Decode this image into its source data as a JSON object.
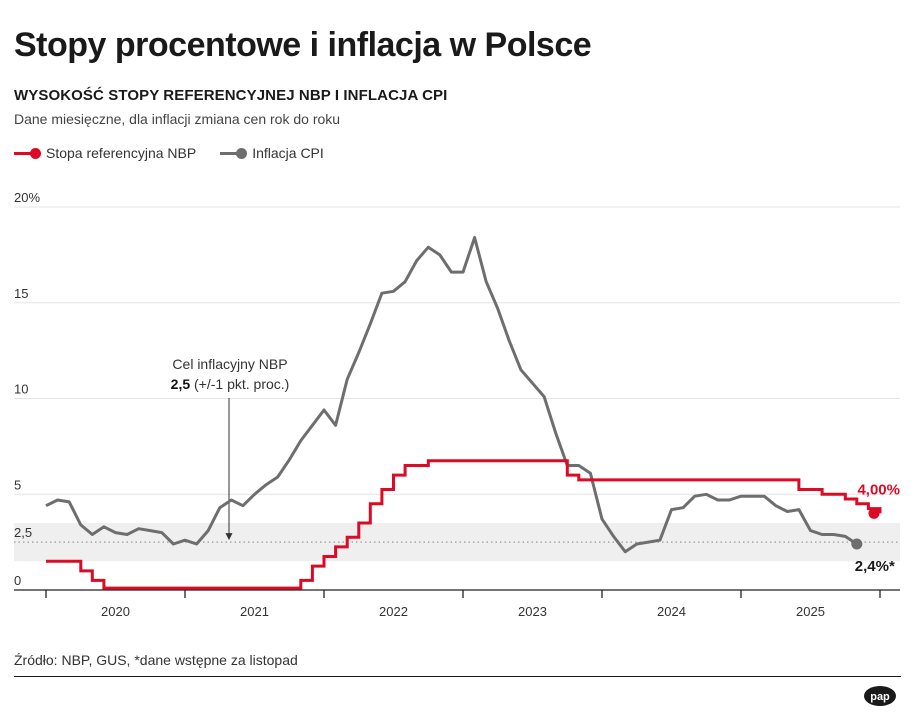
{
  "title": "Stopy procentowe i inflacja w Polsce",
  "subtitle": "WYSOKOŚĆ STOPY REFERENCYJNEJ NBP I INFLACJA CPI",
  "note": "Dane miesięczne, dla inflacji zmiana cen rok do roku",
  "legend": {
    "rate": "Stopa referencyjna NBP",
    "cpi": "Inflacja CPI"
  },
  "annotation": {
    "line1": "Cel inflacyjny NBP",
    "value": "2,5",
    "rest": " (+/-1 pkt. proc.)"
  },
  "end_labels": {
    "rate": "4,00%",
    "cpi": "2,4%*"
  },
  "source": "Źródło: NBP, GUS, *dane wstępne za listopad",
  "logo_text": "pap",
  "colors": {
    "rate": "#dc0a24",
    "cpi": "#6e6e6e",
    "band": "#efefef",
    "grid": "#e3e3e3",
    "axis": "#222222"
  },
  "chart_data": {
    "type": "line",
    "ylim": [
      0,
      20
    ],
    "y_ticks": [
      {
        "value": 0,
        "label": "0"
      },
      {
        "value": 2.5,
        "label": "2,5"
      },
      {
        "value": 5,
        "label": "5"
      },
      {
        "value": 10,
        "label": "10"
      },
      {
        "value": 15,
        "label": "15"
      },
      {
        "value": 20,
        "label": "20%"
      }
    ],
    "x_range": [
      "2019-12",
      "2025-12"
    ],
    "year_labels": [
      "2020",
      "2021",
      "2022",
      "2023",
      "2024",
      "2025"
    ],
    "target_band": {
      "center": 2.5,
      "low": 1.5,
      "high": 3.5
    },
    "series": [
      {
        "name": "Stopa referencyjna NBP",
        "step": true,
        "points": [
          [
            "2019-12",
            1.5
          ],
          [
            "2020-01",
            1.5
          ],
          [
            "2020-02",
            1.5
          ],
          [
            "2020-03",
            1.0
          ],
          [
            "2020-04",
            0.5
          ],
          [
            "2020-05",
            0.1
          ],
          [
            "2020-06",
            0.1
          ],
          [
            "2020-07",
            0.1
          ],
          [
            "2020-08",
            0.1
          ],
          [
            "2020-09",
            0.1
          ],
          [
            "2020-10",
            0.1
          ],
          [
            "2020-11",
            0.1
          ],
          [
            "2020-12",
            0.1
          ],
          [
            "2021-01",
            0.1
          ],
          [
            "2021-02",
            0.1
          ],
          [
            "2021-03",
            0.1
          ],
          [
            "2021-04",
            0.1
          ],
          [
            "2021-05",
            0.1
          ],
          [
            "2021-06",
            0.1
          ],
          [
            "2021-07",
            0.1
          ],
          [
            "2021-08",
            0.1
          ],
          [
            "2021-09",
            0.1
          ],
          [
            "2021-10",
            0.5
          ],
          [
            "2021-11",
            1.25
          ],
          [
            "2021-12",
            1.75
          ],
          [
            "2022-01",
            2.25
          ],
          [
            "2022-02",
            2.75
          ],
          [
            "2022-03",
            3.5
          ],
          [
            "2022-04",
            4.5
          ],
          [
            "2022-05",
            5.25
          ],
          [
            "2022-06",
            6.0
          ],
          [
            "2022-07",
            6.5
          ],
          [
            "2022-08",
            6.5
          ],
          [
            "2022-09",
            6.75
          ],
          [
            "2022-10",
            6.75
          ],
          [
            "2022-11",
            6.75
          ],
          [
            "2022-12",
            6.75
          ],
          [
            "2023-01",
            6.75
          ],
          [
            "2023-02",
            6.75
          ],
          [
            "2023-03",
            6.75
          ],
          [
            "2023-04",
            6.75
          ],
          [
            "2023-05",
            6.75
          ],
          [
            "2023-06",
            6.75
          ],
          [
            "2023-07",
            6.75
          ],
          [
            "2023-08",
            6.75
          ],
          [
            "2023-09",
            6.0
          ],
          [
            "2023-10",
            5.75
          ],
          [
            "2023-11",
            5.75
          ],
          [
            "2023-12",
            5.75
          ],
          [
            "2024-01",
            5.75
          ],
          [
            "2024-02",
            5.75
          ],
          [
            "2024-03",
            5.75
          ],
          [
            "2024-04",
            5.75
          ],
          [
            "2024-05",
            5.75
          ],
          [
            "2024-06",
            5.75
          ],
          [
            "2024-07",
            5.75
          ],
          [
            "2024-08",
            5.75
          ],
          [
            "2024-09",
            5.75
          ],
          [
            "2024-10",
            5.75
          ],
          [
            "2024-11",
            5.75
          ],
          [
            "2024-12",
            5.75
          ],
          [
            "2025-01",
            5.75
          ],
          [
            "2025-02",
            5.75
          ],
          [
            "2025-03",
            5.75
          ],
          [
            "2025-04",
            5.75
          ],
          [
            "2025-05",
            5.25
          ],
          [
            "2025-06",
            5.25
          ],
          [
            "2025-07",
            5.0
          ],
          [
            "2025-08",
            5.0
          ],
          [
            "2025-09",
            4.75
          ],
          [
            "2025-10",
            4.5
          ],
          [
            "2025-11",
            4.25
          ],
          [
            "2025-12",
            4.0
          ]
        ]
      },
      {
        "name": "Inflacja CPI",
        "step": false,
        "points": [
          [
            "2019-12",
            4.4
          ],
          [
            "2020-01",
            4.7
          ],
          [
            "2020-02",
            4.6
          ],
          [
            "2020-03",
            3.4
          ],
          [
            "2020-04",
            2.9
          ],
          [
            "2020-05",
            3.3
          ],
          [
            "2020-06",
            3.0
          ],
          [
            "2020-07",
            2.9
          ],
          [
            "2020-08",
            3.2
          ],
          [
            "2020-09",
            3.1
          ],
          [
            "2020-10",
            3.0
          ],
          [
            "2020-11",
            2.4
          ],
          [
            "2020-12",
            2.6
          ],
          [
            "2021-01",
            2.4
          ],
          [
            "2021-02",
            3.1
          ],
          [
            "2021-03",
            4.3
          ],
          [
            "2021-04",
            4.7
          ],
          [
            "2021-05",
            4.4
          ],
          [
            "2021-06",
            5.0
          ],
          [
            "2021-07",
            5.5
          ],
          [
            "2021-08",
            5.9
          ],
          [
            "2021-09",
            6.8
          ],
          [
            "2021-10",
            7.8
          ],
          [
            "2021-11",
            8.6
          ],
          [
            "2021-12",
            9.4
          ],
          [
            "2022-01",
            8.6
          ],
          [
            "2022-02",
            11.0
          ],
          [
            "2022-03",
            12.4
          ],
          [
            "2022-04",
            13.9
          ],
          [
            "2022-05",
            15.5
          ],
          [
            "2022-06",
            15.6
          ],
          [
            "2022-07",
            16.1
          ],
          [
            "2022-08",
            17.2
          ],
          [
            "2022-09",
            17.9
          ],
          [
            "2022-10",
            17.5
          ],
          [
            "2022-11",
            16.6
          ],
          [
            "2022-12",
            16.6
          ],
          [
            "2023-01",
            18.4
          ],
          [
            "2023-02",
            16.1
          ],
          [
            "2023-03",
            14.7
          ],
          [
            "2023-04",
            13.0
          ],
          [
            "2023-05",
            11.5
          ],
          [
            "2023-06",
            10.8
          ],
          [
            "2023-07",
            10.1
          ],
          [
            "2023-08",
            8.2
          ],
          [
            "2023-09",
            6.5
          ],
          [
            "2023-10",
            6.5
          ],
          [
            "2023-11",
            6.1
          ],
          [
            "2023-12",
            3.7
          ],
          [
            "2024-01",
            2.8
          ],
          [
            "2024-02",
            2.0
          ],
          [
            "2024-03",
            2.4
          ],
          [
            "2024-04",
            2.5
          ],
          [
            "2024-05",
            2.6
          ],
          [
            "2024-06",
            4.2
          ],
          [
            "2024-07",
            4.3
          ],
          [
            "2024-08",
            4.9
          ],
          [
            "2024-09",
            5.0
          ],
          [
            "2024-10",
            4.7
          ],
          [
            "2024-11",
            4.7
          ],
          [
            "2024-12",
            4.9
          ],
          [
            "2025-01",
            4.9
          ],
          [
            "2025-02",
            4.9
          ],
          [
            "2025-03",
            4.4
          ],
          [
            "2025-04",
            4.1
          ],
          [
            "2025-05",
            4.2
          ],
          [
            "2025-06",
            3.1
          ],
          [
            "2025-07",
            2.9
          ],
          [
            "2025-08",
            2.9
          ],
          [
            "2025-09",
            2.8
          ],
          [
            "2025-10",
            2.4
          ]
        ]
      }
    ]
  }
}
